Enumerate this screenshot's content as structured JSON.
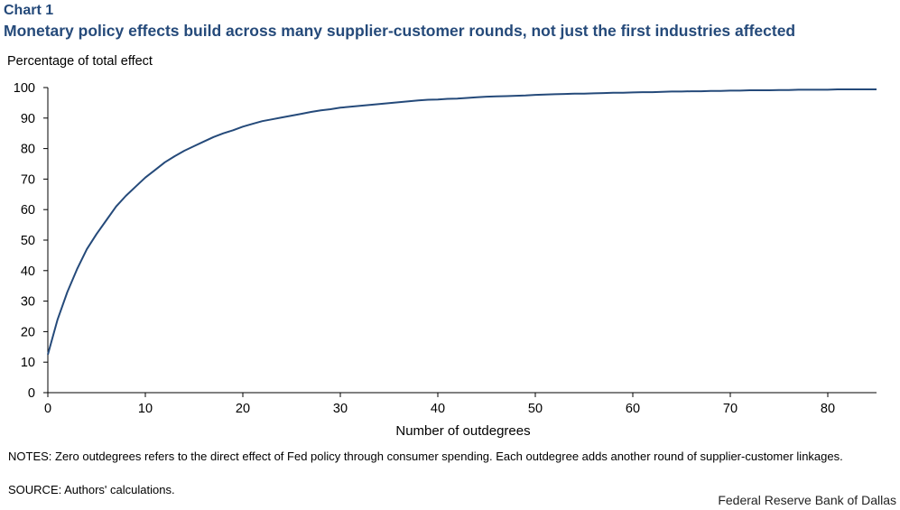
{
  "header": {
    "chart_label": "Chart 1",
    "title": "Monetary policy effects build across many supplier-customer rounds, not just the first industries affected"
  },
  "chart_data": {
    "type": "line",
    "title": "Monetary policy effects build across many supplier-customer rounds, not just the first industries affected",
    "ylabel": "Percentage of total effect",
    "xlabel": "Number of outdegrees",
    "xlim": [
      0,
      85
    ],
    "ylim": [
      0,
      100
    ],
    "xticks": [
      0,
      10,
      20,
      30,
      40,
      50,
      60,
      70,
      80
    ],
    "yticks": [
      0,
      10,
      20,
      30,
      40,
      50,
      60,
      70,
      80,
      90,
      100
    ],
    "grid": false,
    "series": [
      {
        "color": "#254a7a",
        "x": [
          0,
          1,
          2,
          3,
          4,
          5,
          6,
          7,
          8,
          9,
          10,
          11,
          12,
          13,
          14,
          15,
          16,
          17,
          18,
          19,
          20,
          21,
          22,
          23,
          24,
          25,
          26,
          27,
          28,
          29,
          30,
          31,
          32,
          33,
          34,
          35,
          36,
          37,
          38,
          39,
          40,
          41,
          42,
          43,
          44,
          45,
          46,
          47,
          48,
          49,
          50,
          51,
          52,
          53,
          54,
          55,
          56,
          57,
          58,
          59,
          60,
          61,
          62,
          63,
          64,
          65,
          66,
          67,
          68,
          69,
          70,
          71,
          72,
          73,
          74,
          75,
          76,
          77,
          78,
          79,
          80,
          81,
          82,
          83,
          84,
          85
        ],
        "y": [
          12.5,
          24,
          33,
          40.5,
          47,
          52,
          56.5,
          61,
          64.5,
          67.5,
          70.5,
          73,
          75.5,
          77.5,
          79.3,
          80.8,
          82.3,
          83.8,
          85,
          86,
          87.2,
          88.1,
          89,
          89.6,
          90.2,
          90.8,
          91.4,
          92,
          92.5,
          92.9,
          93.4,
          93.7,
          94,
          94.3,
          94.6,
          94.9,
          95.2,
          95.5,
          95.8,
          96,
          96.1,
          96.3,
          96.4,
          96.6,
          96.8,
          97,
          97.1,
          97.2,
          97.3,
          97.4,
          97.6,
          97.7,
          97.8,
          97.9,
          98,
          98,
          98.1,
          98.2,
          98.3,
          98.3,
          98.4,
          98.5,
          98.5,
          98.6,
          98.7,
          98.7,
          98.8,
          98.8,
          98.9,
          98.9,
          99,
          99,
          99.1,
          99.1,
          99.1,
          99.2,
          99.2,
          99.3,
          99.3,
          99.3,
          99.3,
          99.4,
          99.4,
          99.4,
          99.4,
          99.4
        ]
      }
    ]
  },
  "footer": {
    "notes": "NOTES: Zero outdegrees refers to the direct effect of Fed policy through consumer spending. Each outdegree adds another round of supplier-customer linkages.",
    "source": "SOURCE: Authors' calculations.",
    "credit": "Federal Reserve Bank of Dallas"
  }
}
